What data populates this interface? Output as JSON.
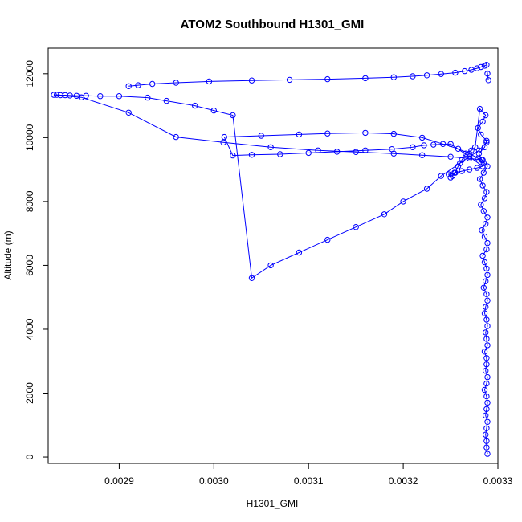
{
  "chart_data": {
    "type": "scatter",
    "title": "ATOM2 Southbound H1301_GMI",
    "xlabel": "H1301_GMI",
    "ylabel": "Altitude (m)",
    "xlim": [
      0.002825,
      0.0033
    ],
    "ylim": [
      -200,
      12800
    ],
    "x_ticks": [
      {
        "value": 0.0029,
        "label": "0.0029"
      },
      {
        "value": 0.003,
        "label": "0.0030"
      },
      {
        "value": 0.0031,
        "label": "0.0031"
      },
      {
        "value": 0.0032,
        "label": "0.0032"
      },
      {
        "value": 0.0033,
        "label": "0.0033"
      }
    ],
    "y_ticks": [
      {
        "value": 0,
        "label": "0"
      },
      {
        "value": 2000,
        "label": "2000"
      },
      {
        "value": 4000,
        "label": "4000"
      },
      {
        "value": 6000,
        "label": "6000"
      },
      {
        "value": 8000,
        "label": "8000"
      },
      {
        "value": 10000,
        "label": "10000"
      },
      {
        "value": 12000,
        "label": "12000"
      }
    ],
    "grid": false,
    "marker": "open-circle",
    "line": true,
    "color": "#0000ff",
    "series": [
      {
        "x": [
          0.003289,
          0.003288,
          0.003288,
          0.003287,
          0.003288,
          0.003289,
          0.003287,
          0.003288,
          0.003289,
          0.003288,
          0.003286,
          0.003288,
          0.003289,
          0.003287,
          0.003288,
          0.003288,
          0.003286,
          0.003289,
          0.003288,
          0.003287,
          0.003289,
          0.003288,
          0.003286,
          0.003287,
          0.003289,
          0.003288,
          0.003285,
          0.003287,
          0.003289,
          0.003288,
          0.003286,
          0.003284,
          0.003288,
          0.003289,
          0.003286,
          0.003283,
          0.003287,
          0.003289,
          0.003285,
          0.003282,
          0.003286,
          0.003288,
          0.003284,
          0.003281,
          0.003285,
          0.003289,
          0.003283,
          0.00328,
          0.003286,
          0.003288,
          0.003282,
          0.003279,
          0.003284,
          0.003287,
          0.003281,
          0.003276,
          0.003272,
          0.003266,
          0.003262,
          0.003258,
          0.003255,
          0.003252,
          0.00325,
          0.003248,
          0.003254,
          0.003262,
          0.00327,
          0.003278,
          0.003284,
          0.00327,
          0.00325,
          0.003232,
          0.003222,
          0.00321,
          0.003188,
          0.00316,
          0.00313,
          0.0031,
          0.00307,
          0.00304,
          0.00302,
          0.003011,
          0.00305,
          0.00309,
          0.00312,
          0.00316,
          0.00319,
          0.00322,
          0.003242,
          0.003258,
          0.00327,
          0.003279,
          0.003285
        ],
        "y": [
          100,
          300,
          500,
          700,
          900,
          1100,
          1300,
          1500,
          1700,
          1900,
          2100,
          2300,
          2500,
          2700,
          2900,
          3100,
          3300,
          3500,
          3700,
          3900,
          4100,
          4300,
          4500,
          4700,
          4900,
          5100,
          5300,
          5500,
          5700,
          5900,
          6100,
          6300,
          6500,
          6700,
          6900,
          7100,
          7300,
          7500,
          7700,
          7900,
          8100,
          8300,
          8500,
          8700,
          8900,
          9100,
          9300,
          9500,
          9700,
          9900,
          10100,
          10300,
          10500,
          10700,
          10900,
          9700,
          9600,
          9500,
          9300,
          9100,
          8900,
          8800,
          8750,
          8850,
          8900,
          8950,
          9000,
          9050,
          9100,
          9400,
          9800,
          9780,
          9760,
          9700,
          9640,
          9600,
          9560,
          9520,
          9480,
          9460,
          9440,
          10020,
          10060,
          10100,
          10130,
          10150,
          10120,
          10000,
          9800,
          9650,
          9500,
          9350,
          9200
        ]
      },
      {
        "x": [
          0.003288,
          0.00328,
          0.00326,
          0.00324,
          0.003225,
          0.0032,
          0.00318,
          0.00315,
          0.00312,
          0.00309,
          0.00306,
          0.00304,
          0.00302,
          0.003,
          0.00298,
          0.00295,
          0.00293,
          0.0029,
          0.00288,
          0.002865,
          0.002855,
          0.002848,
          0.002843,
          0.002838,
          0.002834,
          0.002831,
          0.00286,
          0.00291,
          0.00296,
          0.00301,
          0.00306,
          0.00311,
          0.00315,
          0.00319,
          0.00322,
          0.00325,
          0.00327,
          0.003284
        ],
        "y": [
          9850,
          9600,
          9200,
          8800,
          8400,
          8000,
          7600,
          7200,
          6800,
          6400,
          6000,
          5600,
          10700,
          10850,
          11000,
          11150,
          11250,
          11300,
          11300,
          11310,
          11310,
          11320,
          11330,
          11330,
          11340,
          11340,
          11260,
          10780,
          10020,
          9850,
          9700,
          9600,
          9550,
          9500,
          9450,
          9400,
          9350,
          9300
        ]
      },
      {
        "x": [
          0.00291,
          0.00292,
          0.002935,
          0.00296,
          0.002995,
          0.00304,
          0.00308,
          0.00312,
          0.00316,
          0.00319,
          0.00321,
          0.003225,
          0.00324,
          0.003255,
          0.003265,
          0.003272,
          0.003278,
          0.003282,
          0.003286,
          0.003288,
          0.003289,
          0.00329
        ],
        "y": [
          11610,
          11640,
          11680,
          11720,
          11760,
          11790,
          11810,
          11830,
          11860,
          11890,
          11920,
          11950,
          11990,
          12030,
          12080,
          12120,
          12170,
          12210,
          12250,
          12280,
          12000,
          11800
        ]
      }
    ]
  }
}
